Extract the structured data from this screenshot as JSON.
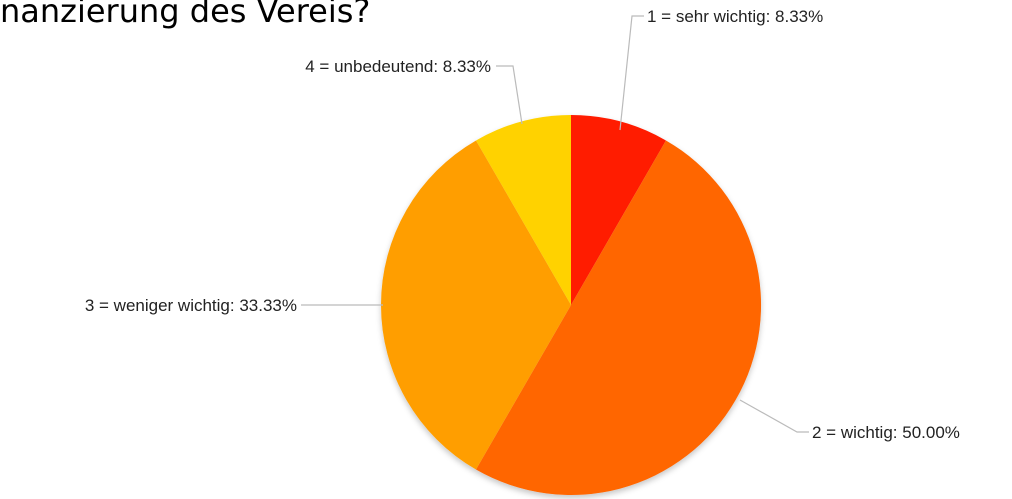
{
  "page": {
    "title_fragment": "nanzierung des Vereis?"
  },
  "chart_data": {
    "type": "pie",
    "start": "12 o'clock",
    "direction": "clockwise",
    "slices": [
      {
        "label": "1 = sehr wichtig: 8.33%",
        "category": "1 = sehr wichtig",
        "value": 8.33,
        "color": "#ff1b00"
      },
      {
        "label": "2 = wichtig: 50.00%",
        "category": "2 = wichtig",
        "value": 50.0,
        "color": "#ff6600"
      },
      {
        "label": "3 = weniger wichtig: 33.33%",
        "category": "3 = weniger wichtig",
        "value": 33.33,
        "color": "#ff9e00"
      },
      {
        "label": "4 = unbedeutend: 8.33%",
        "category": "4 = unbedeutend",
        "value": 8.33,
        "color": "#ffd200"
      }
    ]
  }
}
